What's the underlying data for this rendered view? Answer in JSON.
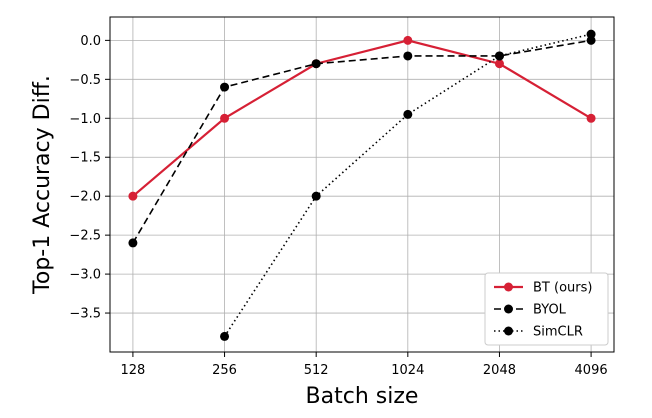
{
  "chart_data": {
    "type": "line",
    "x_scale": "log2",
    "x": [
      128,
      256,
      512,
      1024,
      2048,
      4096
    ],
    "x_tick_labels": [
      "128",
      "256",
      "512",
      "1024",
      "2048",
      "4096"
    ],
    "xlabel": "Batch size",
    "ylabel": "Top-1 Accuracy Diff.",
    "ylim": [
      -4.0,
      0.3
    ],
    "y_ticks": [
      0.0,
      -0.5,
      -1.0,
      -1.5,
      -2.0,
      -2.5,
      -3.0,
      -3.5
    ],
    "y_tick_labels": [
      "0.0",
      "−0.5",
      "−1.0",
      "−1.5",
      "−2.0",
      "−2.5",
      "−3.0",
      "−3.5"
    ],
    "grid": true,
    "legend_position": "lower-right",
    "series": [
      {
        "name": "BT (ours)",
        "values": [
          -2.0,
          -1.0,
          -0.3,
          0.0,
          -0.3,
          -1.0
        ],
        "color": "#d62035",
        "linestyle": "solid"
      },
      {
        "name": "BYOL",
        "values": [
          -2.6,
          -0.6,
          -0.3,
          -0.2,
          -0.2,
          0.0
        ],
        "color": "#000000",
        "linestyle": "dashed"
      },
      {
        "name": "SimCLR",
        "values": [
          null,
          -3.8,
          -2.0,
          -0.95,
          -0.2,
          0.08
        ],
        "color": "#000000",
        "linestyle": "dotted"
      }
    ]
  }
}
